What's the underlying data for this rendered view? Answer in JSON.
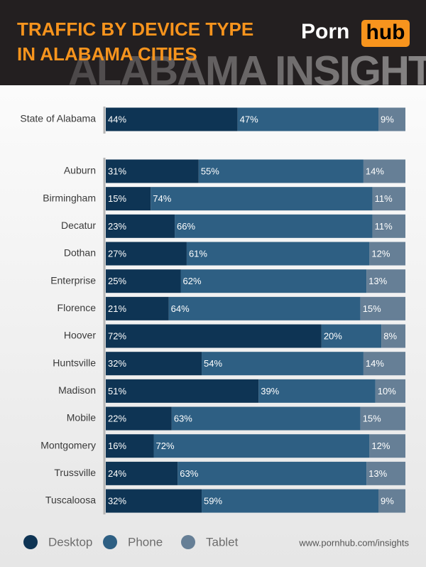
{
  "chart_data": {
    "type": "stacked-bar-horizontal",
    "title": [
      "TRAFFIC BY DEVICE TYPE",
      "IN ALABAMA CITIES"
    ],
    "brand": [
      "Porn",
      "hub"
    ],
    "watermark": "ALABAMA INSIGHTS",
    "source": "www.pornhub.com/insights",
    "categories": [
      "State of Alabama",
      "Auburn",
      "Birmingham",
      "Decatur",
      "Dothan",
      "Enterprise",
      "Florence",
      "Hoover",
      "Huntsville",
      "Madison",
      "Mobile",
      "Montgomery",
      "Trussville",
      "Tuscaloosa"
    ],
    "xlim": [
      0,
      100
    ],
    "series": [
      {
        "name": "Desktop",
        "color": "#0e3454",
        "values": [
          44,
          31,
          15,
          23,
          27,
          25,
          21,
          72,
          32,
          51,
          22,
          16,
          24,
          32
        ],
        "value_labels": [
          "44%",
          "31%",
          "15%",
          "23%",
          "27%",
          "25%",
          "21%",
          "72%",
          "32%",
          "51%",
          "22%",
          "16%",
          "24%",
          "32%"
        ]
      },
      {
        "name": "Phone",
        "color": "#2e5f83",
        "values": [
          47,
          55,
          74,
          66,
          61,
          62,
          64,
          20,
          54,
          39,
          63,
          72,
          63,
          59
        ],
        "value_labels": [
          "47%",
          "55%",
          "74%",
          "66%",
          "61%",
          "62%",
          "64%",
          "20%",
          "54%",
          "39%",
          "63%",
          "72%",
          "63%",
          "59%"
        ]
      },
      {
        "name": "Tablet",
        "color": "#667f96",
        "values": [
          9,
          14,
          11,
          11,
          12,
          13,
          15,
          8,
          14,
          10,
          15,
          12,
          13,
          9
        ],
        "value_labels": [
          "9%",
          "14%",
          "11%",
          "11%",
          "12%",
          "13%",
          "15%",
          "8%",
          "14%",
          "10%",
          "15%",
          "12%",
          "13%",
          "9%"
        ]
      }
    ]
  }
}
